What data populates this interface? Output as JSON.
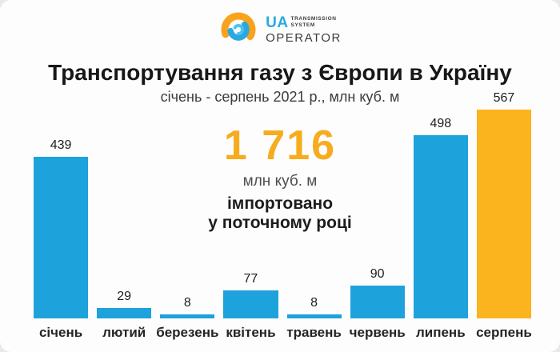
{
  "logo": {
    "ua": "UA",
    "small_line1": "TRANSMISSION",
    "small_line2": "SYSTEM",
    "operator": "OPERATOR"
  },
  "header": {
    "title": "Транспортування газу з Європи в Україну",
    "subtitle": "січень - серпень 2021 р., млн куб. м"
  },
  "summary": {
    "total": "1 716",
    "unit": "млн куб. м",
    "line1": "імпортовано",
    "line2": "у поточному році"
  },
  "chart_data": {
    "type": "bar",
    "title": "Транспортування газу з Європи в Україну",
    "subtitle": "січень - серпень 2021 р., млн куб. м",
    "categories": [
      "січень",
      "лютий",
      "березень",
      "квітень",
      "травень",
      "червень",
      "липень",
      "серпень"
    ],
    "values": [
      439,
      29,
      8,
      77,
      8,
      90,
      498,
      567
    ],
    "bar_colors": [
      "#1ea2db",
      "#1ea2db",
      "#1ea2db",
      "#1ea2db",
      "#1ea2db",
      "#1ea2db",
      "#1ea2db",
      "#fbb41e"
    ],
    "data_labels": [
      "439",
      "29",
      "8",
      "77",
      "8",
      "90",
      "498",
      "567"
    ],
    "total": 1716,
    "xlabel": "",
    "ylabel": "млн куб. м",
    "ylim": [
      0,
      600
    ],
    "grid": false,
    "legend": "none"
  },
  "colors": {
    "bar_blue": "#1ea2db",
    "bar_orange": "#fbb41e",
    "accent_number": "#f6ac1e",
    "logo_blue": "#2aa9e0",
    "logo_orange": "#f9a21b",
    "text_dark": "#1c1c1c",
    "text_gray": "#3c3c3c",
    "background": "#fdfdfd"
  }
}
